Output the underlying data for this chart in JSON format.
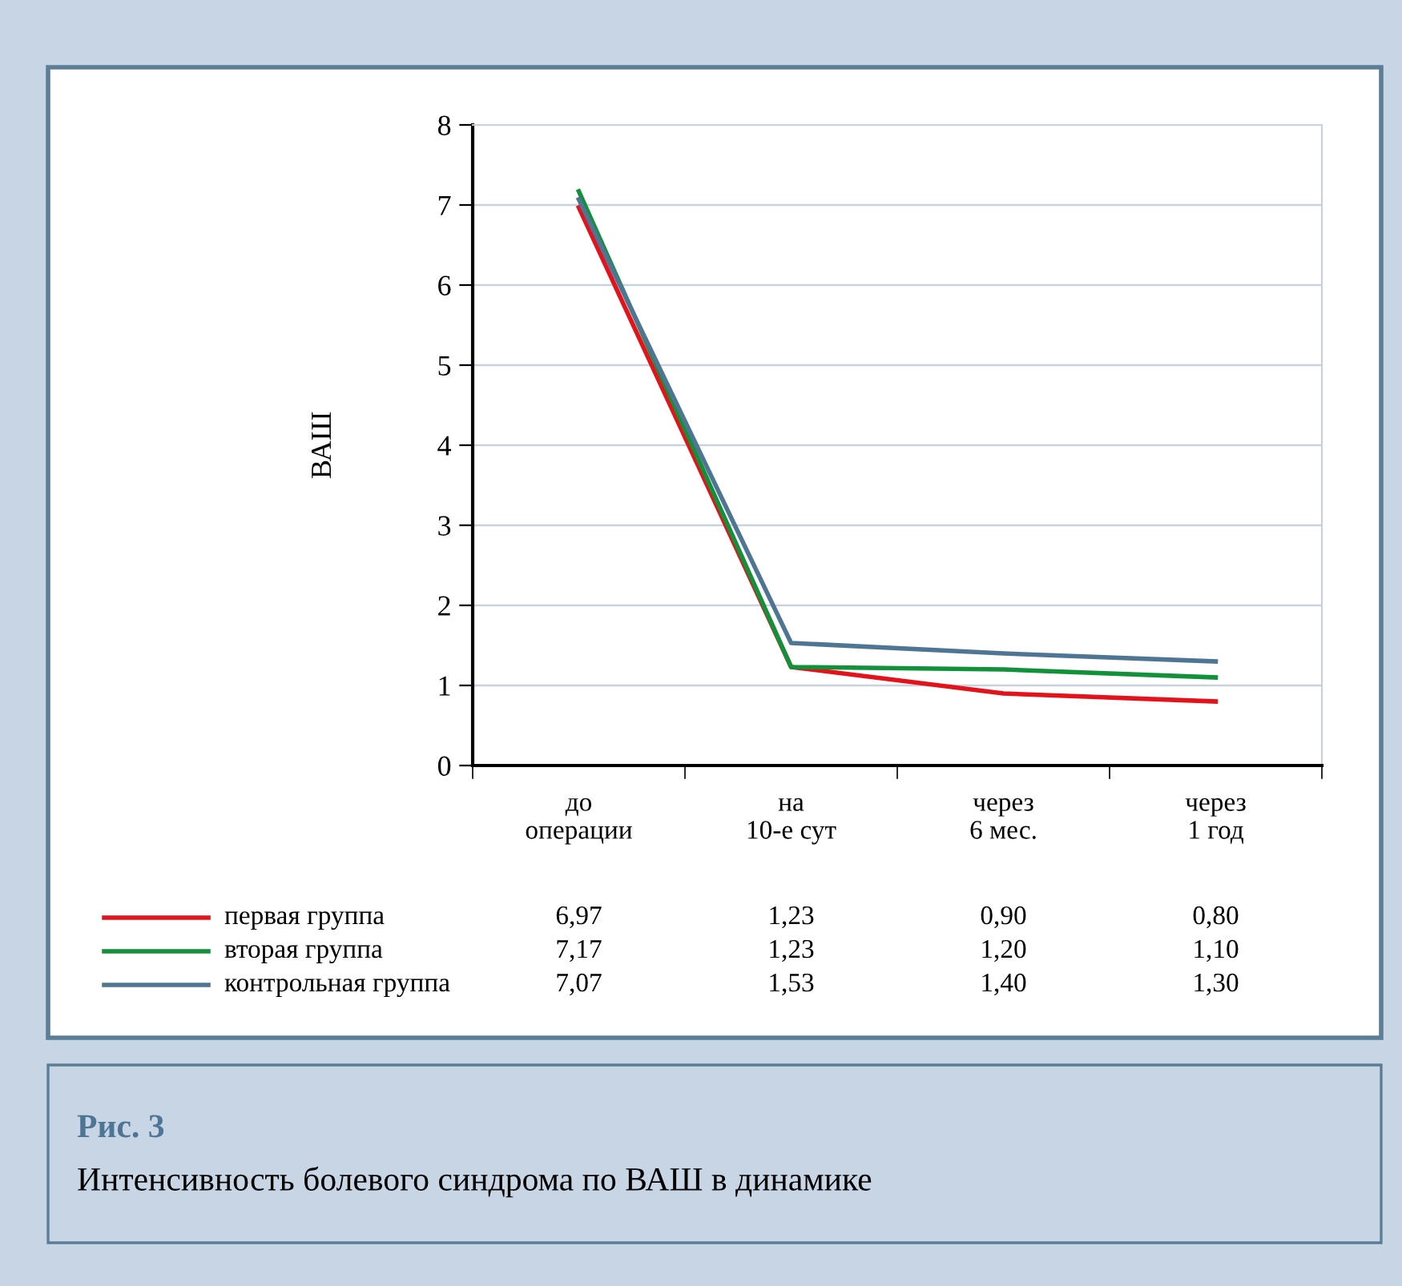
{
  "chart_data": {
    "type": "line",
    "title": "Рис. 3",
    "subtitle": "Интенсивность болевого синдрома по ВАШ в динамике",
    "ylabel": "ВАШ",
    "categories": [
      "до\nоперации",
      "на\n10-е сут",
      "через\n6 мес.",
      "через\n1 год"
    ],
    "series": [
      {
        "name": "первая группа",
        "color": "#e3121b",
        "values": [
          6.97,
          1.23,
          0.9,
          0.8
        ],
        "value_labels": [
          "6,97",
          "1,23",
          "0,90",
          "0,80"
        ]
      },
      {
        "name": "вторая группа",
        "color": "#11913a",
        "values": [
          7.17,
          1.23,
          1.2,
          1.1
        ],
        "value_labels": [
          "7,17",
          "1,23",
          "1,20",
          "1,10"
        ]
      },
      {
        "name": "контрольная группа",
        "color": "#4f7594",
        "values": [
          7.07,
          1.53,
          1.4,
          1.3
        ],
        "value_labels": [
          "7,07",
          "1,53",
          "1,40",
          "1,30"
        ]
      }
    ],
    "ylim": [
      0,
      8
    ],
    "yticks": [
      0,
      1,
      2,
      3,
      4,
      5,
      6,
      7,
      8
    ],
    "grid": "y",
    "legend": "bottom",
    "marker": "none",
    "line_style": "solid"
  }
}
